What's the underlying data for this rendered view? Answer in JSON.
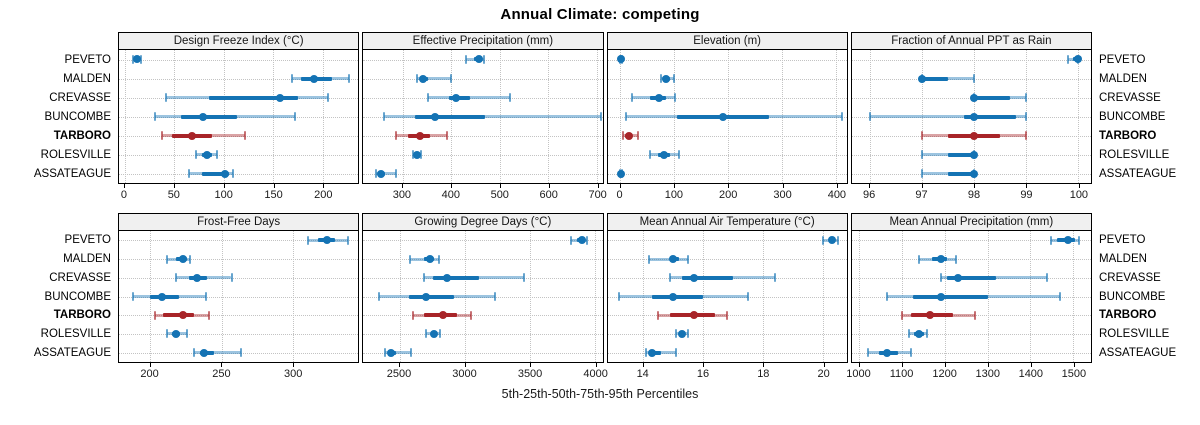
{
  "title": "Annual Climate: competing",
  "caption": "5th-25th-50th-75th-95th Percentiles",
  "locations": [
    "PEVETO",
    "MALDEN",
    "CREVASSE",
    "BUNCOMBE",
    "TARBORO",
    "ROLESVILLE",
    "ASSATEAGUE"
  ],
  "highlight_location": "TARBORO",
  "colors": {
    "series": "#1473b4",
    "series_light": "rgba(20,115,180,0.42)",
    "series_cap": "rgba(20,115,180,0.65)",
    "highlight": "#a82428",
    "highlight_light": "rgba(168,36,40,0.42)",
    "highlight_cap": "rgba(168,36,40,0.65)",
    "strip_bg": "#f0f0f0",
    "grid": "#c3c3c3"
  },
  "chart_data": [
    {
      "type": "dot-whisker-percentiles",
      "title": "Design Freeze Index (°C)",
      "row": "top",
      "xlim": [
        -6,
        236
      ],
      "ticks": [
        0,
        50,
        100,
        150,
        200
      ],
      "percentiles": {
        "PEVETO": [
          8,
          10,
          12,
          14,
          16
        ],
        "MALDEN": [
          169,
          178,
          191,
          209,
          227
        ],
        "CREVASSE": [
          42,
          85,
          157,
          175,
          205
        ],
        "BUNCOMBE": [
          30,
          57,
          79,
          113,
          172
        ],
        "TARBORO": [
          37,
          48,
          68,
          88,
          121
        ],
        "ROLESVILLE": [
          72,
          78,
          83,
          88,
          93
        ],
        "ASSATEAGUE": [
          65,
          78,
          101,
          105,
          109
        ]
      }
    },
    {
      "type": "dot-whisker-percentiles",
      "title": "Effective Precipitation (mm)",
      "row": "top",
      "xlim": [
        219,
        712
      ],
      "ticks": [
        300,
        400,
        500,
        600,
        700
      ],
      "percentiles": {
        "PEVETO": [
          430,
          447,
          458,
          464,
          467
        ],
        "MALDEN": [
          330,
          336,
          343,
          352,
          400
        ],
        "CREVASSE": [
          352,
          396,
          410,
          438,
          522
        ],
        "BUNCOMBE": [
          262,
          325,
          367,
          470,
          708
        ],
        "TARBORO": [
          286,
          311,
          336,
          356,
          391
        ],
        "ROLESVILLE": [
          322,
          326,
          330,
          334,
          339
        ],
        "ASSATEAGUE": [
          245,
          249,
          256,
          263,
          286
        ]
      }
    },
    {
      "type": "dot-whisker-percentiles",
      "title": "Elevation (m)",
      "row": "top",
      "xlim": [
        -24,
        420
      ],
      "ticks": [
        0,
        100,
        200,
        300,
        400
      ],
      "percentiles": {
        "PEVETO": [
          0,
          0,
          1,
          2,
          3
        ],
        "MALDEN": [
          75,
          79,
          85,
          92,
          100
        ],
        "CREVASSE": [
          22,
          55,
          72,
          85,
          102
        ],
        "BUNCOMBE": [
          10,
          105,
          190,
          275,
          412
        ],
        "TARBORO": [
          5,
          9,
          15,
          22,
          32
        ],
        "ROLESVILLE": [
          55,
          70,
          80,
          92,
          108
        ],
        "ASSATEAGUE": [
          0,
          0,
          1,
          2,
          3
        ]
      }
    },
    {
      "type": "dot-whisker-percentiles",
      "title": "Fraction of Annual PPT as Rain",
      "row": "top",
      "xlim": [
        95.65,
        100.25
      ],
      "ticks": [
        96,
        97,
        98,
        99,
        100
      ],
      "percentiles": {
        "PEVETO": [
          99.8,
          99.9,
          100,
          100,
          100
        ],
        "MALDEN": [
          97,
          97,
          97,
          97.5,
          98
        ],
        "CREVASSE": [
          98,
          98,
          98,
          98.7,
          99
        ],
        "BUNCOMBE": [
          96,
          97.8,
          98,
          98.8,
          99
        ],
        "TARBORO": [
          97,
          97.5,
          98,
          98.5,
          99
        ],
        "ROLESVILLE": [
          97,
          97.5,
          98,
          98,
          98
        ],
        "ASSATEAGUE": [
          97,
          97.5,
          98,
          98,
          98
        ]
      }
    },
    {
      "type": "dot-whisker-percentiles",
      "title": "Frost-Free Days",
      "row": "bottom",
      "xlim": [
        178,
        346
      ],
      "ticks": [
        200,
        250,
        300
      ],
      "percentiles": {
        "PEVETO": [
          311,
          318,
          324,
          330,
          339
        ],
        "MALDEN": [
          212,
          218,
          223,
          226,
          228
        ],
        "CREVASSE": [
          218,
          227,
          233,
          240,
          257
        ],
        "BUNCOMBE": [
          188,
          200,
          208,
          220,
          239
        ],
        "TARBORO": [
          203,
          209,
          223,
          231,
          241
        ],
        "ROLESVILLE": [
          212,
          215,
          218,
          221,
          226
        ],
        "ASSATEAGUE": [
          231,
          235,
          238,
          245,
          264
        ]
      }
    },
    {
      "type": "dot-whisker-percentiles",
      "title": "Growing Degree Days (°C)",
      "row": "bottom",
      "xlim": [
        2220,
        4060
      ],
      "ticks": [
        2500,
        3000,
        3500,
        4000
      ],
      "percentiles": {
        "PEVETO": [
          3820,
          3865,
          3900,
          3922,
          3938
        ],
        "MALDEN": [
          2580,
          2685,
          2730,
          2762,
          2805
        ],
        "CREVASSE": [
          2685,
          2760,
          2865,
          3110,
          3455
        ],
        "BUNCOMBE": [
          2340,
          2570,
          2700,
          2915,
          3235
        ],
        "TARBORO": [
          2600,
          2690,
          2835,
          2940,
          3045
        ],
        "ROLESVILLE": [
          2705,
          2740,
          2762,
          2786,
          2810
        ],
        "ASSATEAGUE": [
          2385,
          2410,
          2435,
          2470,
          2590
        ]
      }
    },
    {
      "type": "dot-whisker-percentiles",
      "title": "Mean Annual Air Temperature (°C)",
      "row": "bottom",
      "xlim": [
        12.8,
        20.8
      ],
      "ticks": [
        14,
        16,
        18,
        20
      ],
      "percentiles": {
        "PEVETO": [
          20.0,
          20.2,
          20.3,
          20.4,
          20.5
        ],
        "MALDEN": [
          14.2,
          14.9,
          15.0,
          15.2,
          15.5
        ],
        "CREVASSE": [
          14.9,
          15.3,
          15.7,
          17.0,
          18.4
        ],
        "BUNCOMBE": [
          13.2,
          14.3,
          15.0,
          16.0,
          17.5
        ],
        "TARBORO": [
          14.5,
          14.9,
          15.7,
          16.4,
          16.8
        ],
        "ROLESVILLE": [
          15.1,
          15.2,
          15.3,
          15.4,
          15.5
        ],
        "ASSATEAGUE": [
          14.1,
          14.2,
          14.3,
          14.6,
          15.1
        ]
      }
    },
    {
      "type": "dot-whisker-percentiles",
      "title": "Mean Annual Precipitation (mm)",
      "row": "bottom",
      "xlim": [
        982,
        1542
      ],
      "ticks": [
        1000,
        1100,
        1200,
        1300,
        1400,
        1500
      ],
      "percentiles": {
        "PEVETO": [
          1448,
          1462,
          1488,
          1505,
          1515
        ],
        "MALDEN": [
          1140,
          1170,
          1190,
          1205,
          1225
        ],
        "CREVASSE": [
          1190,
          1205,
          1230,
          1320,
          1440
        ],
        "BUNCOMBE": [
          1065,
          1125,
          1190,
          1300,
          1470
        ],
        "TARBORO": [
          1100,
          1120,
          1165,
          1220,
          1270
        ],
        "ROLESVILLE": [
          1115,
          1128,
          1140,
          1150,
          1158
        ],
        "ASSATEAGUE": [
          1020,
          1045,
          1065,
          1090,
          1120
        ]
      }
    }
  ]
}
